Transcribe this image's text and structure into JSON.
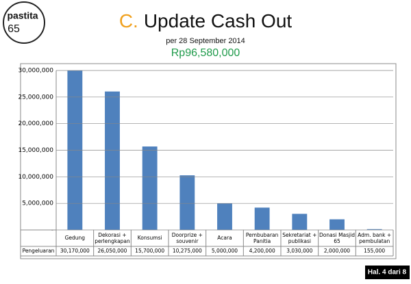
{
  "logo": {
    "name": "pastita",
    "number": "65"
  },
  "chart_data": {
    "type": "bar",
    "title_prefix": "C.",
    "title": "Update Cash Out",
    "subtitle": "per 28 September 2014",
    "total": "Rp96,580,000",
    "row_label": "Pengeluaran",
    "categories": [
      "Gedung",
      "Dekorasi + perlengkapan",
      "Konsumsi",
      "Doorprize + souvenir",
      "Acara",
      "Pembubaran Panitia",
      "Sekretariat + publikasi",
      "Donasi Masjid 65",
      "Adm. bank + pembulatan"
    ],
    "values": [
      30170000,
      26050000,
      15700000,
      10275000,
      5000000,
      4200000,
      3030000,
      2000000,
      155000
    ],
    "value_labels": [
      "30,170,000",
      "26,050,000",
      "15,700,000",
      "10,275,000",
      "5,000,000",
      "4,200,000",
      "3,030,000",
      "2,000,000",
      "155,000"
    ],
    "color": "#4f81bd",
    "ylim": [
      0,
      30000000
    ],
    "yticks": [
      {
        "value": 0,
        "label": "-"
      },
      {
        "value": 5000000,
        "label": "5,000,000"
      },
      {
        "value": 10000000,
        "label": "10,000,000"
      },
      {
        "value": 15000000,
        "label": "15,000,000"
      },
      {
        "value": 20000000,
        "label": "20,000,000"
      },
      {
        "value": 25000000,
        "label": "25,000,000"
      },
      {
        "value": 30000000,
        "label": "30,000,000"
      }
    ],
    "grid": true
  },
  "footer": "Hal. 4 dari 8"
}
